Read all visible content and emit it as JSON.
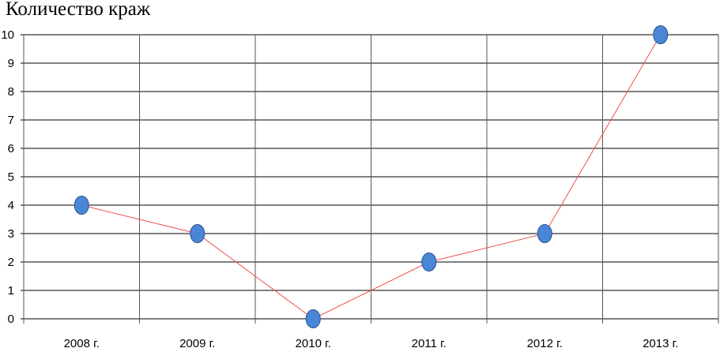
{
  "chart_data": {
    "type": "line",
    "title": "Количество краж",
    "categories": [
      "2008 г.",
      "2009 г.",
      "2010 г.",
      "2011 г.",
      "2012 г.",
      "2013 г."
    ],
    "series": [
      {
        "values": [
          4,
          3,
          0,
          2,
          3,
          10
        ]
      }
    ],
    "ylim": [
      0,
      10
    ],
    "yticks": [
      0,
      1,
      2,
      3,
      4,
      5,
      6,
      7,
      8,
      9,
      10
    ],
    "grid": true,
    "legend": "none",
    "colors": {
      "line": "#f05050",
      "marker": "#4a86d8",
      "marker_stroke": "#2a4f8a",
      "grid": "#000000"
    }
  }
}
